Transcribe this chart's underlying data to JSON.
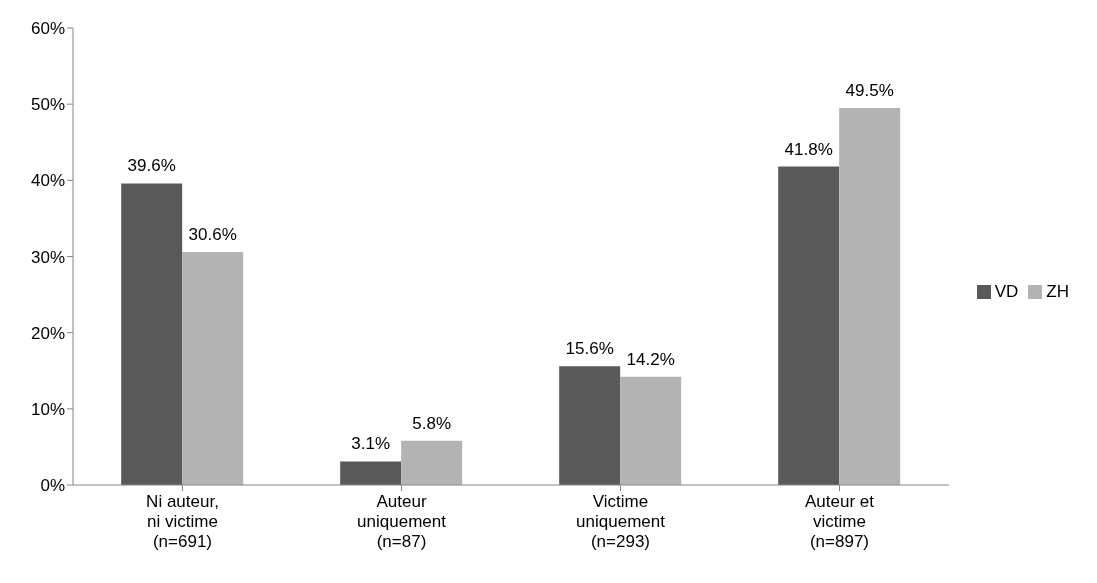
{
  "chart_data": {
    "type": "bar",
    "categories": [
      "Ni auteur,\nni victime\n(n=691)",
      "Auteur\nuniquement\n(n=87)",
      "Victime\nuniquement\n(n=293)",
      "Auteur et\nvictime\n(n=897)"
    ],
    "series": [
      {
        "name": "VD",
        "color": "#595959",
        "values": [
          39.6,
          3.1,
          15.6,
          41.8
        ],
        "value_labels": [
          "39.6%",
          "3.1%",
          "15.6%",
          "41.8%"
        ]
      },
      {
        "name": "ZH",
        "color": "#b3b3b3",
        "values": [
          30.6,
          5.8,
          14.2,
          49.5
        ],
        "value_labels": [
          "30.6%",
          "5.8%",
          "14.2%",
          "49.5%"
        ]
      }
    ],
    "ylim": [
      0,
      60
    ],
    "yticks": [
      {
        "value": 0,
        "label": "0%"
      },
      {
        "value": 10,
        "label": "10%"
      },
      {
        "value": 20,
        "label": "20%"
      },
      {
        "value": 30,
        "label": "30%"
      },
      {
        "value": 40,
        "label": "40%"
      },
      {
        "value": 50,
        "label": "50%"
      },
      {
        "value": 60,
        "label": "60%"
      }
    ],
    "grid": false,
    "legend": "right"
  }
}
